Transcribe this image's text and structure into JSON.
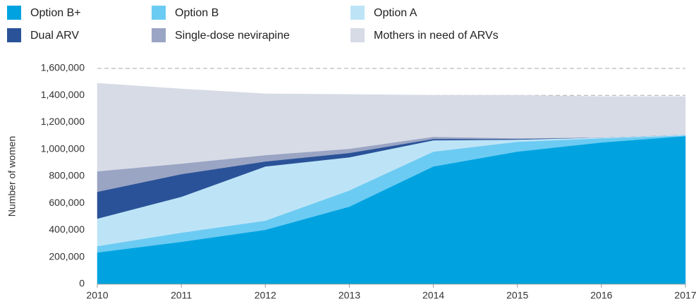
{
  "chart_data": {
    "type": "stacked_area",
    "y_label": "Number of women",
    "categories": [
      "2010",
      "2011",
      "2012",
      "2013",
      "2014",
      "2015",
      "2016",
      "2017"
    ],
    "series": [
      {
        "name": "Option B+",
        "color": "#00a3e0",
        "values": [
          235000,
          314000,
          403000,
          575000,
          873000,
          983000,
          1051000,
          1098000
        ]
      },
      {
        "name": "Option B",
        "color": "#6ccbf2",
        "values": [
          47000,
          68000,
          68000,
          120000,
          110000,
          73000,
          31000,
          5000
        ]
      },
      {
        "name": "Option A",
        "color": "#bde4f6",
        "values": [
          204000,
          266000,
          402000,
          246000,
          84000,
          16000,
          6000,
          6000
        ]
      },
      {
        "name": "Dual ARV",
        "color": "#2a5298",
        "values": [
          199000,
          168000,
          37000,
          32000,
          10000,
          5000,
          0,
          0
        ]
      },
      {
        "name": "Single-dose nevirapine",
        "color": "#9aa5c4",
        "values": [
          152000,
          78000,
          47000,
          31000,
          16000,
          5000,
          0,
          0
        ]
      },
      {
        "name": "Mothers in need of ARVs",
        "color": "#d7dbe6",
        "values": [
          653000,
          554000,
          455000,
          403000,
          308000,
          319000,
          303000,
          282000
        ]
      }
    ],
    "ylim": [
      0,
      1600000
    ],
    "yticks": [
      0,
      {
        "value": 200000,
        "label": "200,000"
      },
      {
        "value": 400000,
        "label": "400,000"
      },
      {
        "value": 600000,
        "label": "600,000"
      },
      {
        "value": 800000,
        "label": "800,000"
      },
      {
        "value": 1000000,
        "label": "1,000,000"
      },
      {
        "value": 1200000,
        "label": "1,200,000"
      },
      {
        "value": 1400000,
        "label": "1,400,000"
      },
      {
        "value": 1600000,
        "label": "1,600,000"
      }
    ],
    "grid": true
  }
}
